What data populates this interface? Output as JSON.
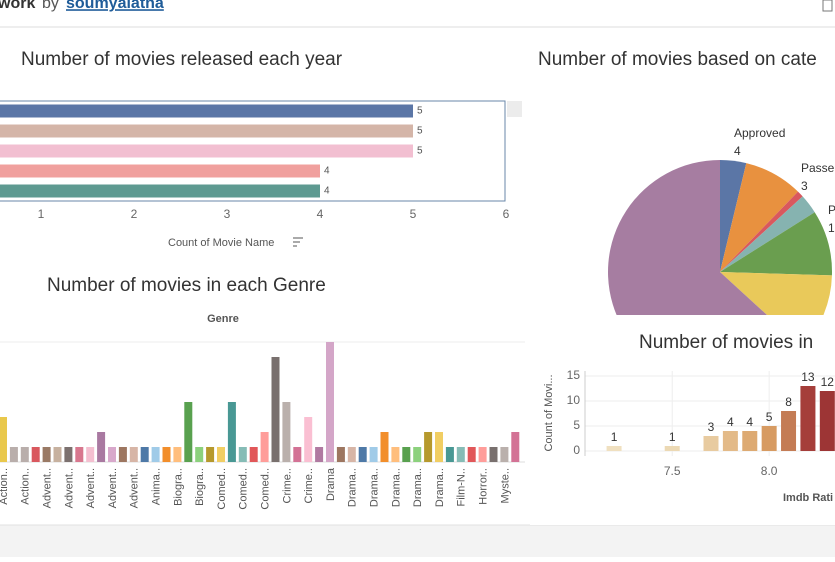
{
  "header": {
    "title": "work",
    "by": "by",
    "author": "soumyalatha"
  },
  "chart_data": [
    {
      "type": "hbar",
      "title": "Number of movies released each year",
      "categories": [
        null,
        null,
        null,
        null,
        null
      ],
      "values": [
        5,
        5,
        5,
        4,
        4
      ],
      "colors": [
        "#5b76a6",
        "#d4b5a8",
        "#f2bfd1",
        "#f0a09e",
        "#5e9a91"
      ],
      "xlim": [
        0,
        6
      ],
      "xticks": [
        1,
        2,
        3,
        4,
        5,
        6
      ],
      "xlabel": "Count of Movie Name"
    },
    {
      "type": "pie",
      "title": "Number of movies based on cate",
      "categories": [
        "Approved",
        null,
        null,
        "Passe",
        "P",
        null,
        null
      ],
      "values": [
        4,
        9,
        1,
        3,
        10,
        12,
        67
      ],
      "colors": [
        "#5b76a6",
        "#e8913f",
        "#d9585e",
        "#86b3b0",
        "#6a9e4f",
        "#e9c95a",
        "#a67da1"
      ]
    },
    {
      "type": "bar",
      "title": "Number of movies in each Genre",
      "subtitle": "Genre",
      "categories": [
        "Action..",
        null,
        "Action..",
        null,
        "Advent..",
        null,
        "Advent..",
        null,
        "Advent..",
        null,
        "Advent..",
        null,
        "Advent..",
        null,
        "Anima..",
        null,
        "Biogra..",
        null,
        "Biogra..",
        null,
        "Comed..",
        null,
        "Comed..",
        null,
        "Comed..",
        null,
        "Crime..",
        null,
        "Crime..",
        null,
        "Drama",
        null,
        "Drama..",
        null,
        "Drama..",
        null,
        "Drama..",
        null,
        "Drama..",
        null,
        "Drama..",
        null,
        "Film-N..",
        null,
        "Horror..",
        null,
        "Myste..",
        null
      ],
      "values": [
        3,
        1,
        1,
        1,
        1,
        1,
        1,
        1,
        1,
        2,
        1,
        1,
        1,
        1,
        1,
        1,
        1,
        4,
        1,
        1,
        1,
        4,
        1,
        1,
        2,
        7,
        4,
        1,
        3,
        1,
        8,
        1,
        1,
        1,
        1,
        2,
        1,
        1,
        1,
        2,
        2,
        1,
        1,
        1,
        1,
        1,
        1,
        2
      ],
      "colors": [
        "#e9c84c",
        "#b9aeab",
        "#b9aeab",
        "#d9585e",
        "#9a7a65",
        "#c7b19f",
        "#7c716f",
        "#d8778e",
        "#f4bfd0",
        "#a979a1",
        "#d8a8cb",
        "#9d7660",
        "#d7b5a6",
        "#4e79a7",
        "#a0cbe8",
        "#f28e2b",
        "#ffbe7d",
        "#59a14f",
        "#8cd17d",
        "#b6992d",
        "#f1ce63",
        "#499894",
        "#86bcb6",
        "#e15759",
        "#ff9d9a",
        "#79706e",
        "#bab0ac",
        "#d37295",
        "#fabfd2",
        "#b07aa1",
        "#d4a6c8",
        "#9d7660",
        "#d7b5a6",
        "#4e79a7",
        "#a0cbe8",
        "#f28e2b",
        "#ffbe7d",
        "#59a14f",
        "#8cd17d",
        "#b6992d",
        "#f1ce63",
        "#499894",
        "#86bcb6",
        "#e15759",
        "#ff9d9a",
        "#79706e",
        "#bab0ac",
        "#d37295"
      ],
      "ylim": [
        0,
        8
      ]
    },
    {
      "type": "bar",
      "title": "Number of movies in",
      "ylabel": "Count of Movi...",
      "xlabel": "Imdb Rati",
      "x": [
        7.2,
        7.5,
        7.7,
        7.8,
        7.9,
        8.0,
        8.1,
        8.2,
        8.3
      ],
      "values": [
        1,
        1,
        3,
        4,
        4,
        5,
        8,
        13,
        12
      ],
      "colors": [
        "#f0e0c0",
        "#ecd9b4",
        "#e8cba0",
        "#e3ba88",
        "#ddaa72",
        "#d79b62",
        "#c47c55",
        "#a53e3a",
        "#9d3535"
      ],
      "xlim": [
        7.05,
        8.35
      ],
      "xticks": [
        7.5,
        {
          "value": 8,
          "label": "8.0"
        }
      ],
      "ylim": [
        -1,
        16
      ],
      "yticks": [
        0,
        5,
        10,
        15
      ],
      "grid": true
    }
  ]
}
